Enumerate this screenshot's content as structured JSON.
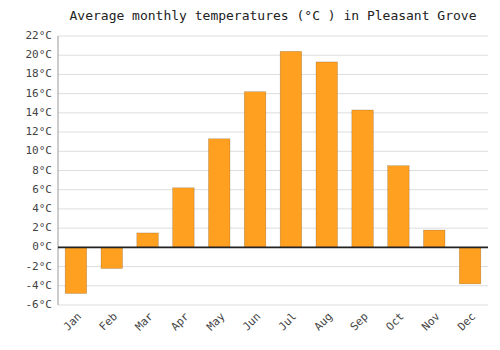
{
  "chart_data": {
    "type": "bar",
    "title": "Average monthly temperatures (°C ) in Pleasant Grove",
    "categories": [
      "Jan",
      "Feb",
      "Mar",
      "Apr",
      "May",
      "Jun",
      "Jul",
      "Aug",
      "Sep",
      "Oct",
      "Nov",
      "Dec"
    ],
    "values": [
      -4.8,
      -2.2,
      1.5,
      6.2,
      11.3,
      16.2,
      20.4,
      19.3,
      14.3,
      8.5,
      1.8,
      -3.8
    ],
    "color": "#FFA020",
    "ylim": [
      -6,
      22
    ],
    "yticks": [
      {
        "value": -6,
        "label": "-6°C"
      },
      {
        "value": -4,
        "label": "-4°C"
      },
      {
        "value": -2,
        "label": "-2°C"
      },
      {
        "value": 0,
        "label": "0°C"
      },
      {
        "value": 2,
        "label": "2°C"
      },
      {
        "value": 4,
        "label": "4°C"
      },
      {
        "value": 6,
        "label": "6°C"
      },
      {
        "value": 8,
        "label": "8°C"
      },
      {
        "value": 10,
        "label": "10°C"
      },
      {
        "value": 12,
        "label": "12°C"
      },
      {
        "value": 14,
        "label": "14°C"
      },
      {
        "value": 16,
        "label": "16°C"
      },
      {
        "value": 18,
        "label": "18°C"
      },
      {
        "value": 20,
        "label": "20°C"
      },
      {
        "value": 22,
        "label": "22°C"
      }
    ],
    "grid": true
  }
}
